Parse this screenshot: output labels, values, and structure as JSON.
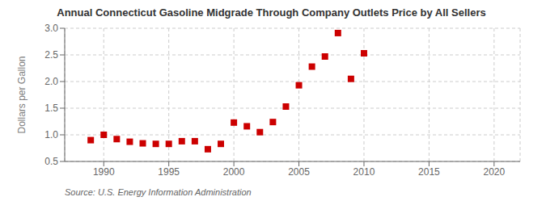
{
  "chart_data": {
    "type": "scatter",
    "title": "Annual Connecticut Gasoline Midgrade Through Company Outlets Price by All Sellers",
    "y_label": "Dollars per Gallon",
    "annotations": [
      "Source: U.S. Energy Information Administration"
    ],
    "x": [
      1989,
      1990,
      1991,
      1992,
      1993,
      1994,
      1995,
      1996,
      1997,
      1998,
      1999,
      2000,
      2001,
      2002,
      2003,
      2004,
      2005,
      2006,
      2007,
      2008,
      2009,
      2010
    ],
    "values": [
      0.9,
      1.0,
      0.92,
      0.87,
      0.84,
      0.83,
      0.83,
      0.88,
      0.88,
      0.73,
      0.83,
      1.23,
      1.16,
      1.05,
      1.24,
      1.53,
      1.93,
      2.28,
      2.47,
      2.91,
      2.05,
      2.53
    ],
    "color": "#cc0000",
    "marker": "square",
    "xlim": [
      1987,
      2022
    ],
    "ylim": [
      0.5,
      3.0
    ],
    "xticks": [
      1990,
      1995,
      2000,
      2005,
      2010,
      2015,
      2020
    ],
    "yticks": [
      0.5,
      {
        "value": 1.0,
        "label": "1.0"
      },
      1.5,
      {
        "value": 2.0,
        "label": "2.0"
      },
      2.5,
      {
        "value": 3.0,
        "label": "3.0"
      }
    ],
    "grid": true
  }
}
